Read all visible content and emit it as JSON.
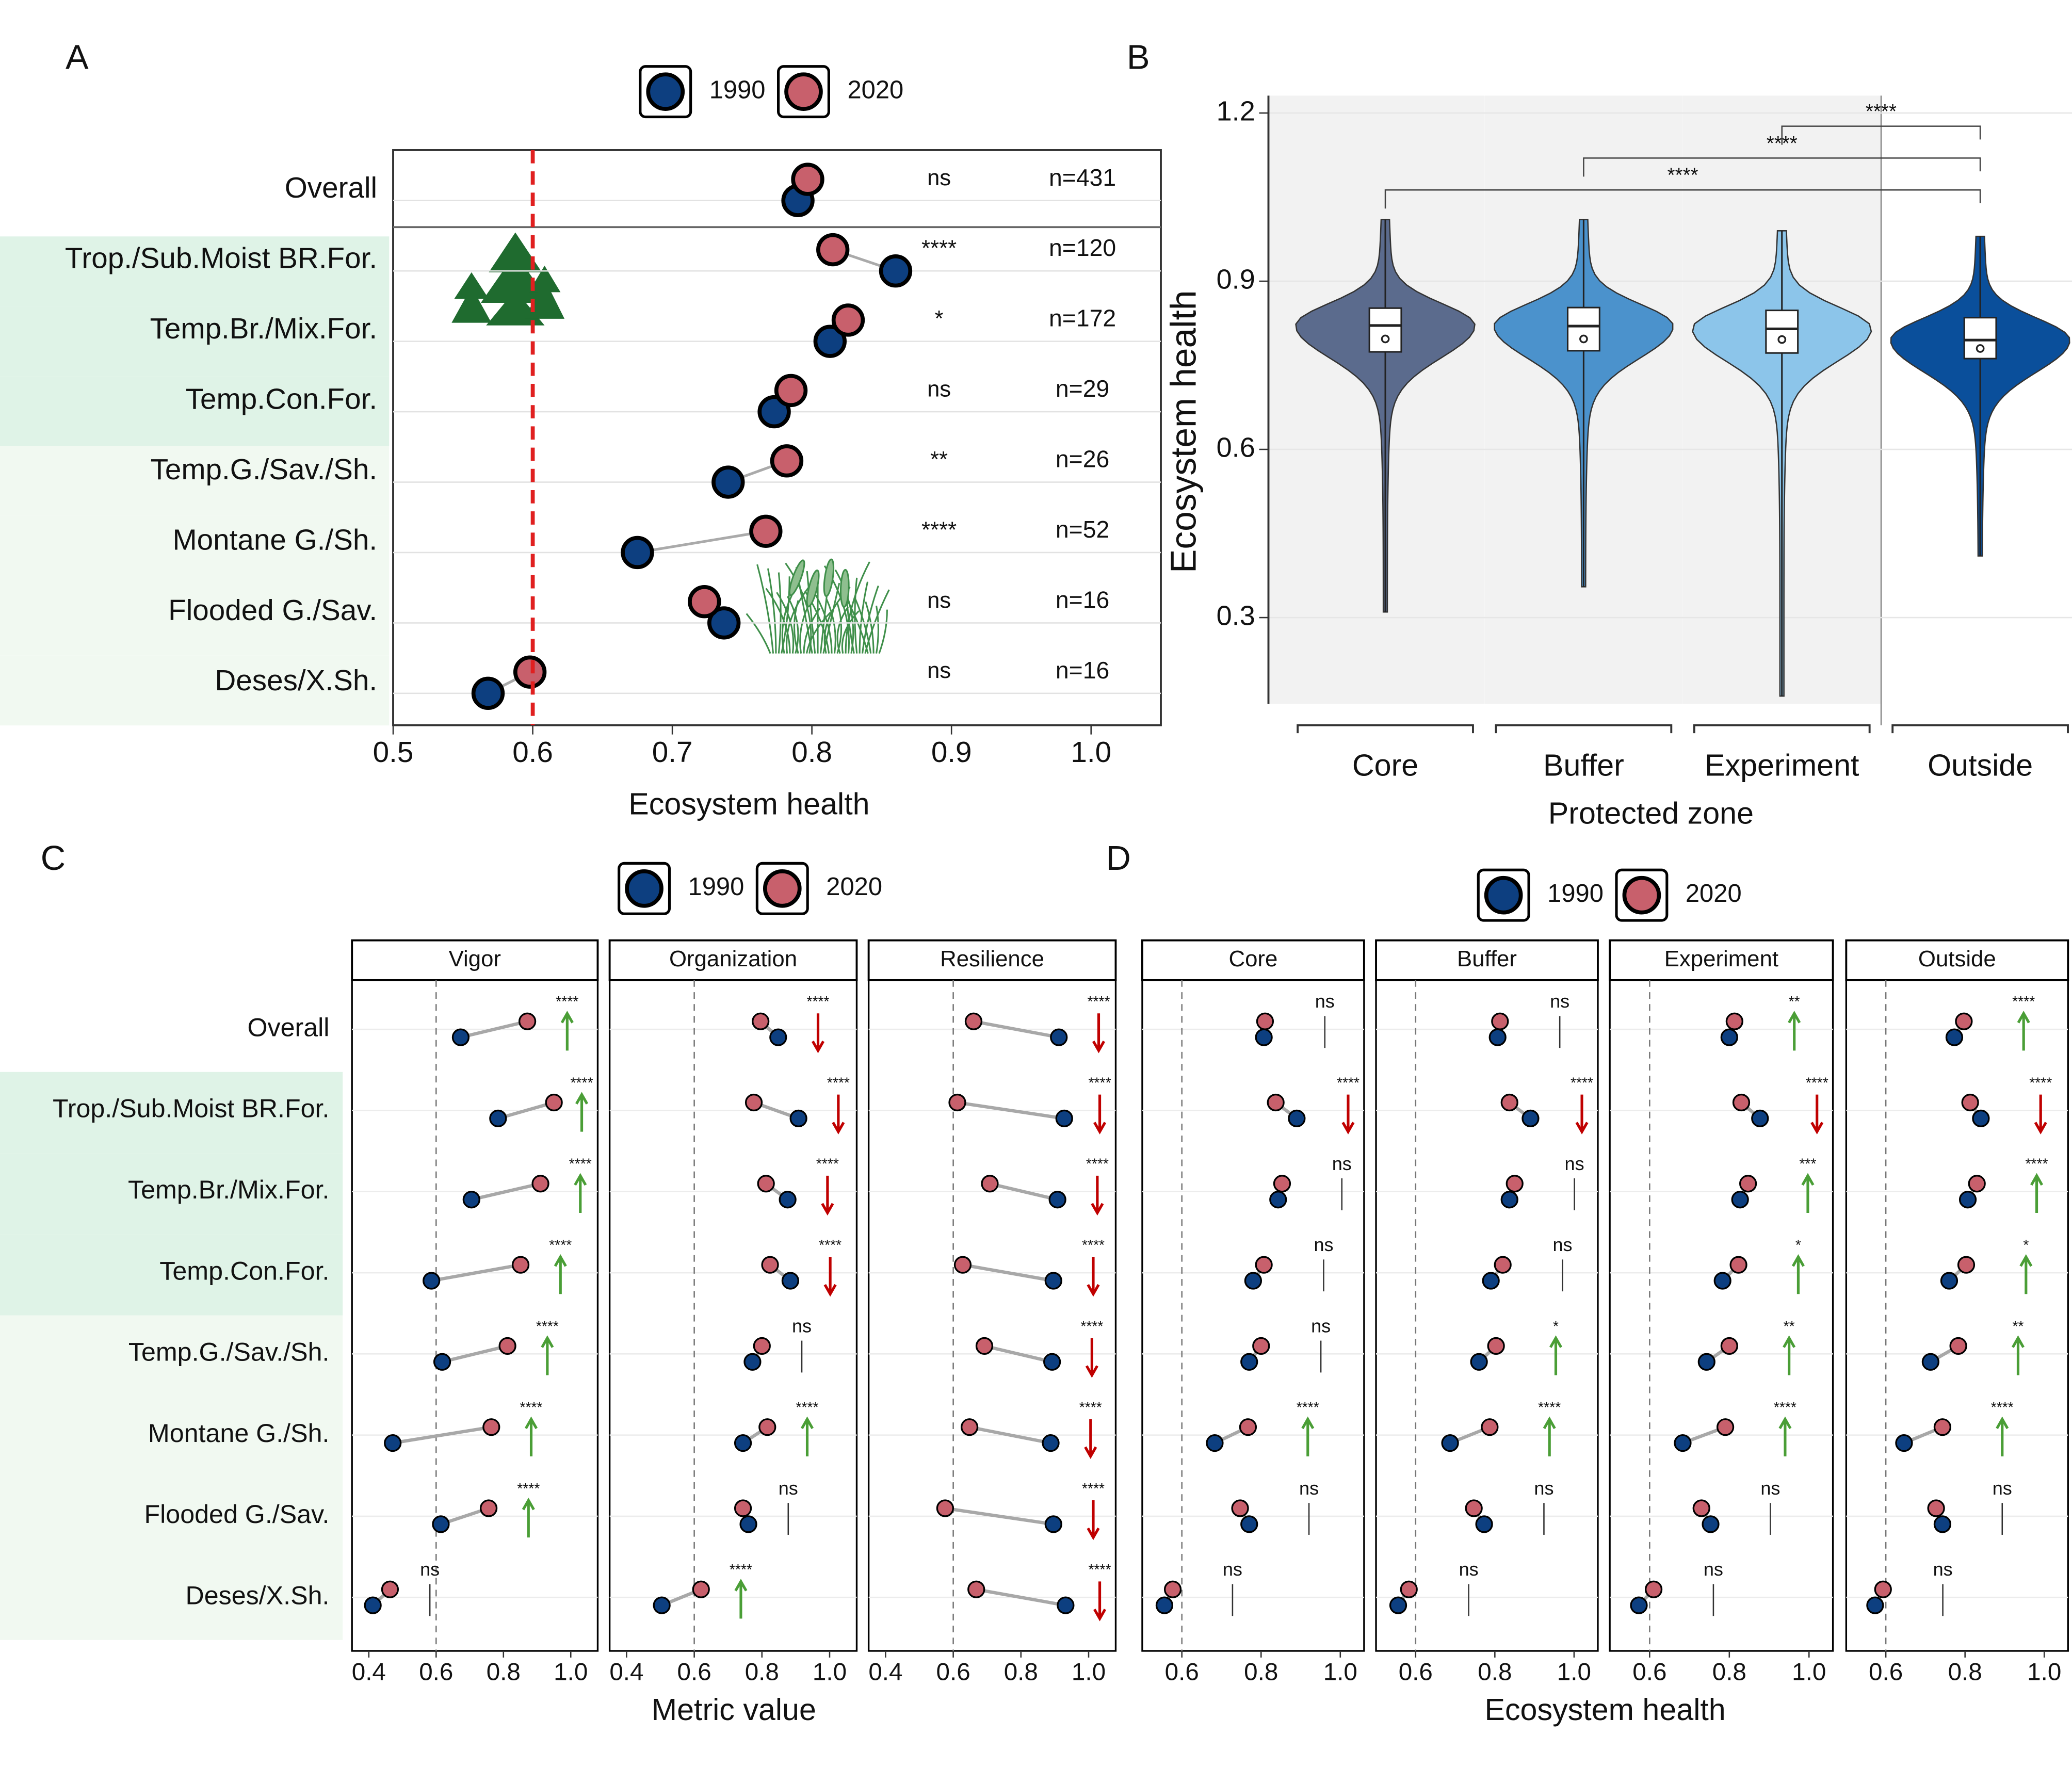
{
  "chart_data": [
    {
      "type": "dumbbell",
      "panel_label": "A",
      "xlabel": "Ecosystem health",
      "categories": [
        "Overall",
        "Trop./Sub.Moist BR.For.",
        "Temp.Br./Mix.For.",
        "Temp.Con.For.",
        "Temp.G./Sav./Sh.",
        "Montane G./Sh.",
        "Flooded G./Sav.",
        "Deses/X.Sh."
      ],
      "series": [
        {
          "name": "1990",
          "color": "#0d3f80",
          "values": [
            0.79,
            0.86,
            0.813,
            0.773,
            0.74,
            0.675,
            0.737,
            0.568
          ]
        },
        {
          "name": "2020",
          "color": "#c8606c",
          "values": [
            0.797,
            0.815,
            0.826,
            0.785,
            0.782,
            0.767,
            0.723,
            0.598
          ]
        }
      ],
      "significance": [
        "ns",
        "****",
        "*",
        "ns",
        "**",
        "****",
        "ns",
        "ns"
      ],
      "n_labels": [
        "n=431",
        "n=120",
        "n=172",
        "n=29",
        "n=26",
        "n=52",
        "n=16",
        "n=16"
      ],
      "xlim": [
        0.5,
        1.05
      ],
      "xticks": [
        0.5,
        0.6,
        0.7,
        0.8,
        0.9,
        {
          "value": 1,
          "label": "1.0"
        }
      ],
      "reference_line": 0.6,
      "reference_color": "#e02020",
      "category_backgrounds": [
        "#ffffff",
        "#dff3e7",
        "#dff3e7",
        "#dff3e7",
        "#f1f9f1",
        "#f1f9f1",
        "#f1f9f1",
        "#f1f9f1"
      ]
    },
    {
      "type": "violin",
      "panel_label": "B",
      "xlabel": "Protected zone",
      "ylabel": "Ecosystem health",
      "categories": [
        "Core",
        "Buffer",
        "Experiment",
        "Outside"
      ],
      "colors": [
        "#5b6b8d",
        "#4b92cc",
        "#8cc5ea",
        "#0a4f9b"
      ],
      "panel_backgrounds": [
        "#f2f2f2",
        "#f2f2f2",
        "#f2f2f2",
        "#ffffff"
      ],
      "min": [
        0.31,
        0.355,
        0.16,
        0.41
      ],
      "q1": [
        0.774,
        0.776,
        0.772,
        0.762
      ],
      "median": [
        0.821,
        0.82,
        0.815,
        0.795
      ],
      "q3": [
        0.852,
        0.853,
        0.848,
        0.835
      ],
      "max": [
        1.01,
        1.01,
        0.99,
        0.98
      ],
      "mean": [
        0.797,
        0.797,
        0.796,
        0.78
      ],
      "ylim": [
        0.146,
        1.231
      ],
      "yticks": [
        0.3,
        0.6,
        0.9,
        1.2
      ],
      "brackets": [
        {
          "label": "****",
          "from": "Core",
          "to": "Outside"
        },
        {
          "label": "****",
          "from": "Buffer",
          "to": "Outside"
        },
        {
          "label": "****",
          "from": "Experiment",
          "to": "Outside"
        }
      ]
    },
    {
      "type": "faceted_dumbbell",
      "panel_label": "C",
      "xlabel": "Metric value",
      "categories": [
        "Overall",
        "Trop./Sub.Moist BR.For.",
        "Temp.Br./Mix.For.",
        "Temp.Con.For.",
        "Temp.G./Sav./Sh.",
        "Montane G./Sh.",
        "Flooded G./Sav.",
        "Deses/X.Sh."
      ],
      "category_backgrounds": [
        "#ffffff",
        "#dff3e7",
        "#dff3e7",
        "#dff3e7",
        "#f1f9f1",
        "#f1f9f1",
        "#f1f9f1",
        "#f1f9f1"
      ],
      "legend": [
        {
          "name": "1990",
          "color": "#0d3f80"
        },
        {
          "name": "2020",
          "color": "#c8606c"
        }
      ],
      "trend_colors": {
        "up": "#4a9e36",
        "down": "#c00000"
      },
      "xlim": [
        0.35,
        1.08
      ],
      "xticks": [
        0.4,
        0.6,
        0.8,
        {
          "value": 1,
          "label": "1.0"
        }
      ],
      "reference_line": 0.6,
      "facets": [
        {
          "title": "Vigor",
          "series": [
            {
              "values": [
                0.673,
                0.784,
                0.705,
                0.586,
                0.618,
                0.471,
                0.614,
                0.412
              ]
            },
            {
              "values": [
                0.871,
                0.95,
                0.91,
                0.851,
                0.812,
                0.764,
                0.756,
                0.463
              ]
            }
          ],
          "significance": [
            "****",
            "****",
            "****",
            "****",
            "****",
            "****",
            "****",
            "ns"
          ],
          "trend": [
            "up",
            "up",
            "up",
            "up",
            "up",
            "up",
            "up",
            null
          ]
        },
        {
          "title": "Organization",
          "series": [
            {
              "values": [
                0.848,
                0.908,
                0.876,
                0.884,
                0.772,
                0.744,
                0.76,
                0.504
              ]
            },
            {
              "values": [
                0.796,
                0.776,
                0.812,
                0.824,
                0.8,
                0.816,
                0.744,
                0.62
              ]
            }
          ],
          "significance": [
            "****",
            "****",
            "****",
            "****",
            "ns",
            "****",
            "ns",
            "****"
          ],
          "trend": [
            "down",
            "down",
            "down",
            "down",
            null,
            "up",
            null,
            "up"
          ]
        },
        {
          "title": "Resilience",
          "series": [
            {
              "values": [
                0.912,
                0.928,
                0.908,
                0.896,
                0.892,
                0.888,
                0.896,
                0.932
              ]
            },
            {
              "values": [
                0.66,
                0.612,
                0.708,
                0.628,
                0.692,
                0.648,
                0.576,
                0.668
              ]
            }
          ],
          "significance": [
            "****",
            "****",
            "****",
            "****",
            "****",
            "****",
            "****",
            "****"
          ],
          "trend": [
            "down",
            "down",
            "down",
            "down",
            "down",
            "down",
            "down",
            "down"
          ]
        }
      ]
    },
    {
      "type": "faceted_dumbbell",
      "panel_label": "D",
      "xlabel": "Ecosystem health",
      "legend": [
        {
          "name": "1990",
          "color": "#0d3f80"
        },
        {
          "name": "2020",
          "color": "#c8606c"
        }
      ],
      "trend_colors": {
        "up": "#4a9e36",
        "down": "#c00000"
      },
      "xlim": [
        0.5,
        1.06
      ],
      "xticks": [
        0.6,
        0.8,
        {
          "value": 1,
          "label": "1.0"
        }
      ],
      "reference_line": 0.6,
      "facets": [
        {
          "title": "Core",
          "series": [
            {
              "values": [
                0.807,
                0.89,
                0.843,
                0.78,
                0.77,
                0.683,
                0.77,
                0.556
              ]
            },
            {
              "values": [
                0.81,
                0.837,
                0.853,
                0.807,
                0.8,
                0.767,
                0.747,
                0.577
              ]
            }
          ],
          "significance": [
            "ns",
            "****",
            "ns",
            "ns",
            "ns",
            "****",
            "ns",
            "ns"
          ],
          "trend": [
            null,
            "down",
            null,
            null,
            null,
            "up",
            null,
            null
          ]
        },
        {
          "title": "Buffer",
          "series": [
            {
              "values": [
                0.807,
                0.89,
                0.837,
                0.79,
                0.76,
                0.687,
                0.773,
                0.556
              ]
            },
            {
              "values": [
                0.813,
                0.837,
                0.85,
                0.82,
                0.803,
                0.787,
                0.747,
                0.583
              ]
            }
          ],
          "significance": [
            "ns",
            "****",
            "ns",
            "ns",
            "*",
            "****",
            "ns",
            "ns"
          ],
          "trend": [
            null,
            "down",
            null,
            null,
            "up",
            "up",
            null,
            null
          ]
        },
        {
          "title": "Experiment",
          "series": [
            {
              "values": [
                0.8,
                0.877,
                0.827,
                0.783,
                0.743,
                0.683,
                0.753,
                0.573
              ]
            },
            {
              "values": [
                0.813,
                0.83,
                0.847,
                0.823,
                0.8,
                0.79,
                0.73,
                0.61
              ]
            }
          ],
          "significance": [
            "**",
            "****",
            "***",
            "*",
            "**",
            "****",
            "ns",
            "ns"
          ],
          "trend": [
            "up",
            "down",
            "up",
            "up",
            "up",
            "up",
            null,
            null
          ]
        },
        {
          "title": "Outside",
          "series": [
            {
              "values": [
                0.773,
                0.84,
                0.807,
                0.76,
                0.713,
                0.646,
                0.743,
                0.573
              ]
            },
            {
              "values": [
                0.797,
                0.813,
                0.83,
                0.803,
                0.783,
                0.743,
                0.727,
                0.593
              ]
            }
          ],
          "significance": [
            "****",
            "****",
            "****",
            "*",
            "**",
            "****",
            "ns",
            "ns"
          ],
          "trend": [
            "up",
            "down",
            "up",
            "up",
            "up",
            "up",
            null,
            null
          ]
        }
      ]
    }
  ]
}
